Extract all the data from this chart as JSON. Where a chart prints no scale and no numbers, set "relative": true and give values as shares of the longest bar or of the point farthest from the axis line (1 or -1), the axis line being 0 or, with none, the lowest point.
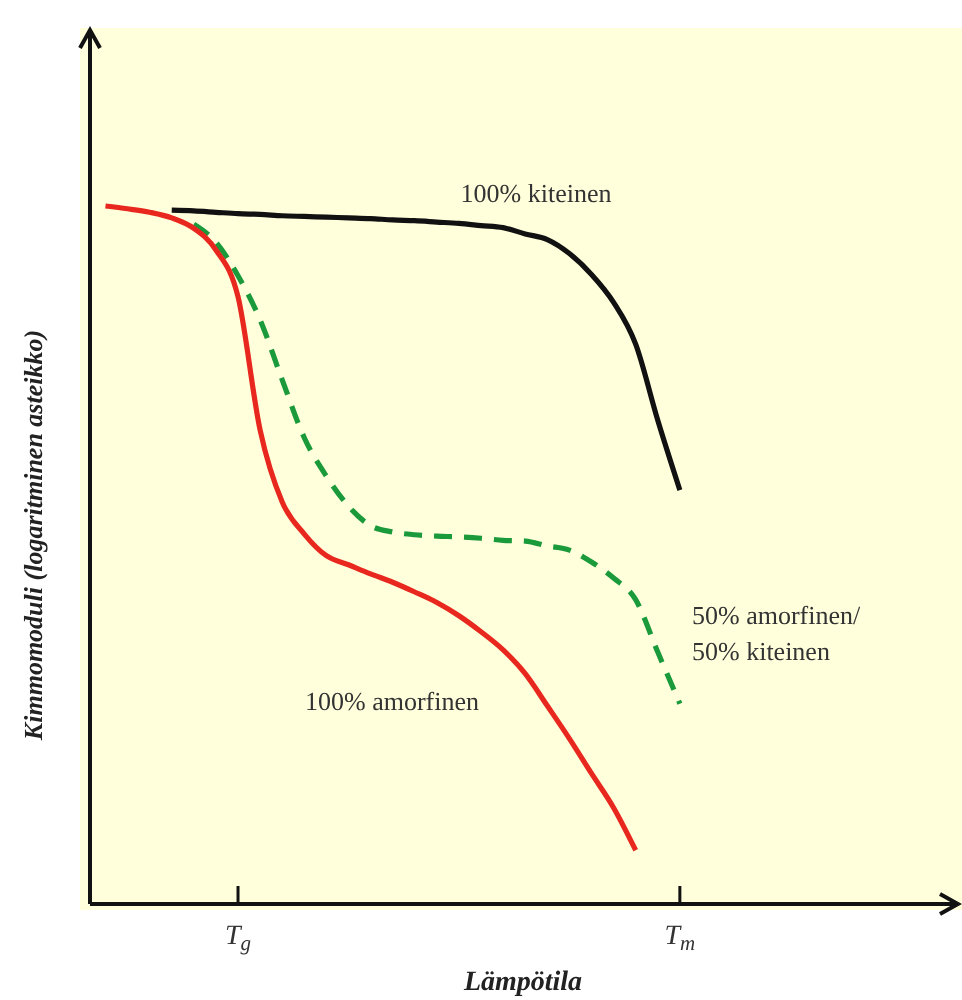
{
  "chart_data": {
    "type": "line",
    "relative": true,
    "xlabel": "Lämpötila",
    "ylabel": "Kimmomoduli (logaritminen asteikko)",
    "categories": [
      null,
      null,
      null,
      null,
      null,
      null,
      "T$_{g}$",
      null,
      null,
      null,
      null,
      null,
      null,
      null,
      null,
      null,
      null,
      null,
      null,
      null,
      null,
      null,
      null,
      null,
      null,
      null,
      "T$_{m}$",
      null,
      null,
      null,
      null,
      null,
      null,
      null,
      null,
      null,
      null,
      null,
      null
    ],
    "grid": false,
    "legend": false,
    "marker": "none",
    "series": [
      {
        "name": "100% kiteinen",
        "color": "#111111",
        "line_style": "solid",
        "values": [
          null,
          null,
          null,
          0.994,
          0.993,
          0.991,
          0.989,
          0.988,
          0.986,
          0.985,
          0.984,
          0.983,
          0.982,
          0.98,
          0.979,
          0.977,
          0.975,
          0.972,
          0.969,
          0.96,
          0.952,
          0.932,
          0.902,
          0.862,
          0.802,
          0.693,
          0.593,
          null,
          null,
          null,
          null,
          null,
          null,
          null,
          null,
          null,
          null,
          null,
          null
        ]
      },
      {
        "name": "50% amorfinen/ 50% kiteinen",
        "color": "#1a9a3a",
        "line_style": "dashed",
        "values": [
          null,
          null,
          null,
          null,
          0.974,
          0.948,
          0.9,
          0.837,
          0.751,
          0.668,
          0.613,
          0.57,
          0.542,
          0.533,
          0.529,
          0.527,
          0.526,
          0.524,
          0.521,
          0.52,
          0.513,
          0.507,
          0.49,
          0.467,
          0.436,
          0.361,
          0.287,
          null,
          null,
          null,
          null,
          null,
          null,
          null,
          null,
          null,
          null,
          null,
          null
        ]
      },
      {
        "name": "100% amorfinen",
        "color": "#e8281e",
        "line_style": "solid",
        "values": [
          1,
          0.996,
          0.991,
          0.983,
          0.968,
          0.937,
          0.87,
          0.679,
          0.576,
          0.53,
          0.499,
          0.486,
          0.473,
          0.461,
          0.447,
          0.432,
          0.413,
          0.39,
          0.364,
          0.33,
          0.284,
          0.237,
          0.187,
          0.138,
          0.077,
          null,
          null,
          null,
          null,
          null,
          null,
          null,
          null,
          null,
          null,
          null,
          null,
          null,
          null
        ]
      }
    ]
  }
}
